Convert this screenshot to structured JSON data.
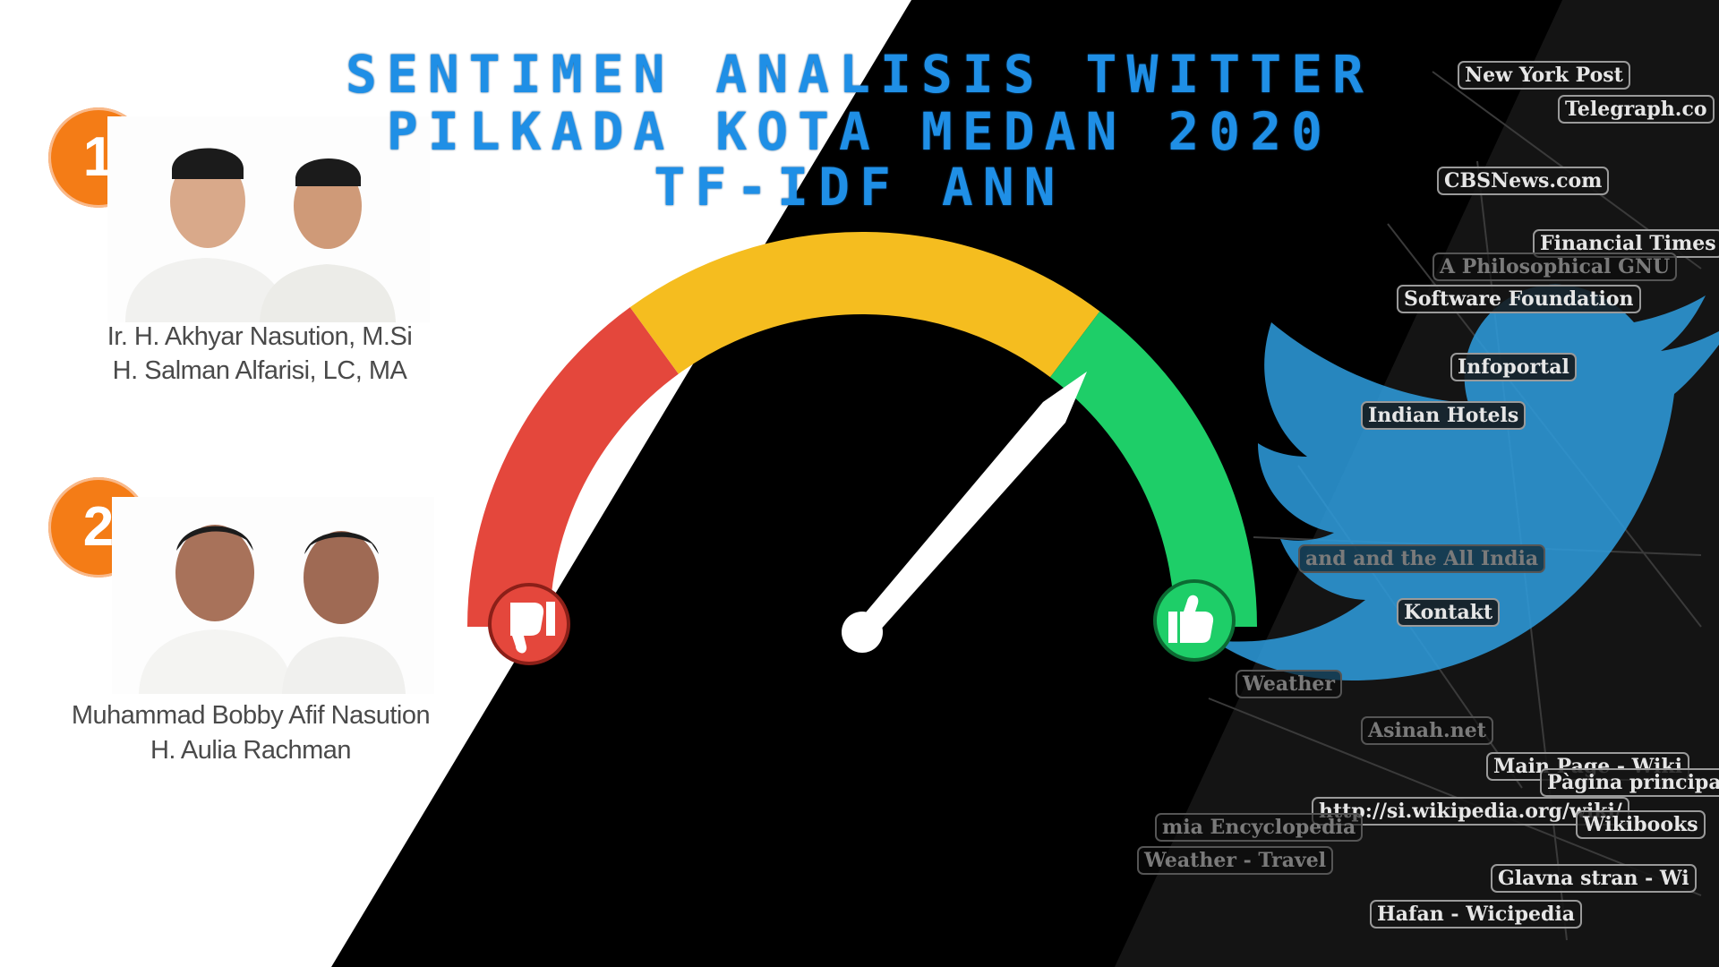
{
  "title": {
    "line1": "SENTIMEN ANALISIS TWITTER",
    "line2": "PILKADA KOTA MEDAN 2020",
    "line3": "TF-IDF ANN",
    "color": "#1f8fe6"
  },
  "candidates": [
    {
      "number": "1",
      "name_line1": "Ir. H. Akhyar Nasution, M.Si",
      "name_line2": "H. Salman Alfarisi, LC, MA"
    },
    {
      "number": "2",
      "name_line1": "Muhammad Bobby Afif Nasution",
      "name_line2": "H. Aulia Rachman"
    }
  ],
  "gauge": {
    "segments": [
      {
        "label": "negative",
        "color": "#e4473c"
      },
      {
        "label": "neutral",
        "color": "#f5bd1f"
      },
      {
        "label": "positive",
        "color": "#1ece68"
      }
    ],
    "left_icon": "thumbs-down-icon",
    "right_icon": "thumbs-up-icon",
    "needle_color": "#ffffff"
  },
  "network_labels": [
    "New York Post",
    "Telegraph.co",
    "CBSNews.com",
    "Financial Times",
    "A Philosophical GNU",
    "Software Foundation",
    "Infoportal",
    "Indian Hotels",
    "and and the All India",
    "Kontakt",
    "Weather",
    "Asinah.net",
    "Main Page - Wiki",
    "Pàgina principal",
    "http://si.wikipedia.org/wiki/",
    "Wikibooks",
    "mia Encyclopedia",
    "Weather - Travel",
    "Glavna stran - Wi",
    "Hafan - Wicipedia"
  ],
  "colors": {
    "left_panel": "#ffffff",
    "center_panel": "#000000",
    "twitter_bird": "#2e9ddf"
  }
}
